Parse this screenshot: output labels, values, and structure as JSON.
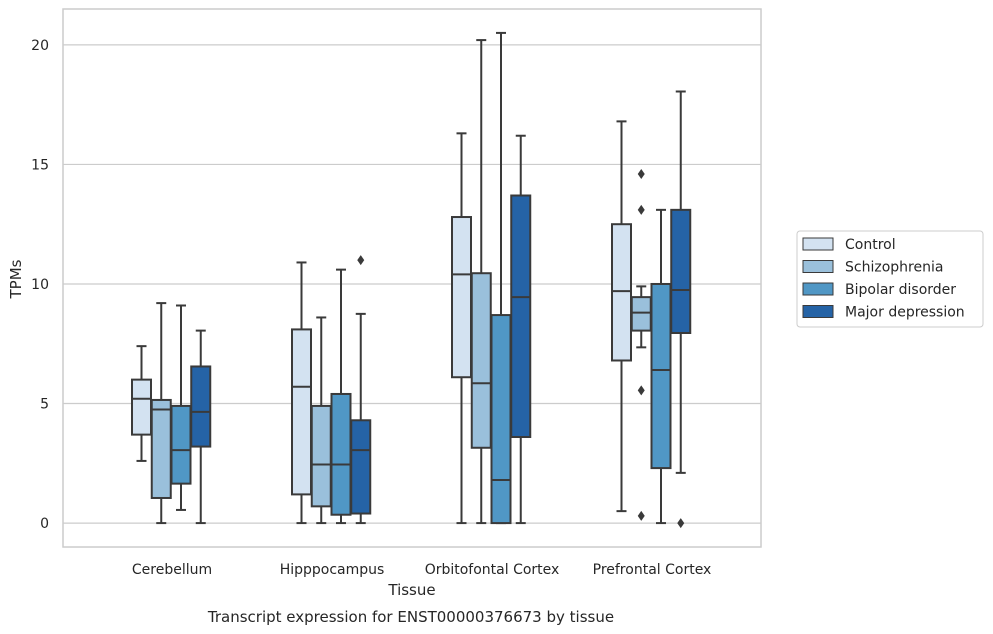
{
  "chart_data": {
    "type": "boxplot",
    "title": "",
    "caption": "Transcript expression for ENST00000376673 by tissue",
    "xlabel": "Tissue",
    "ylabel": "TPMs",
    "ylim": [
      -1,
      21.5
    ],
    "yticks": [
      0,
      5,
      10,
      15,
      20
    ],
    "grid": "horizontal",
    "legend_position": "right",
    "categories": [
      "Cerebellum",
      "Hipppocampus",
      "Orbitofontal Cortex",
      "Prefrontal Cortex"
    ],
    "series": [
      {
        "name": "Control",
        "color": "#d3e2f1",
        "boxes": [
          {
            "whislo": 2.6,
            "q1": 3.7,
            "med": 5.2,
            "q3": 6.0,
            "whishi": 7.4,
            "fliers": []
          },
          {
            "whislo": 0.0,
            "q1": 1.2,
            "med": 5.7,
            "q3": 8.1,
            "whishi": 10.9,
            "fliers": []
          },
          {
            "whislo": 0.0,
            "q1": 6.1,
            "med": 10.4,
            "q3": 12.8,
            "whishi": 16.3,
            "fliers": []
          },
          {
            "whislo": 0.5,
            "q1": 6.8,
            "med": 9.7,
            "q3": 12.5,
            "whishi": 16.8,
            "fliers": []
          }
        ]
      },
      {
        "name": "Schizophrenia",
        "color": "#9ac0db",
        "boxes": [
          {
            "whislo": 0.0,
            "q1": 1.05,
            "med": 4.75,
            "q3": 5.15,
            "whishi": 9.2,
            "fliers": []
          },
          {
            "whislo": 0.0,
            "q1": 0.7,
            "med": 2.45,
            "q3": 4.9,
            "whishi": 8.6,
            "fliers": []
          },
          {
            "whislo": 0.0,
            "q1": 3.15,
            "med": 5.85,
            "q3": 10.45,
            "whishi": 20.2,
            "fliers": []
          },
          {
            "whislo": 7.35,
            "q1": 8.05,
            "med": 8.8,
            "q3": 9.45,
            "whishi": 9.9,
            "fliers": [
              0.3,
              5.55,
              13.1,
              14.6
            ]
          }
        ]
      },
      {
        "name": "Bipolar disorder",
        "color": "#5097c5",
        "boxes": [
          {
            "whislo": 0.55,
            "q1": 1.65,
            "med": 3.05,
            "q3": 4.9,
            "whishi": 9.1,
            "fliers": []
          },
          {
            "whislo": 0.0,
            "q1": 0.35,
            "med": 2.45,
            "q3": 5.4,
            "whishi": 10.6,
            "fliers": []
          },
          {
            "whislo": 0.0,
            "q1": 0.0,
            "med": 1.8,
            "q3": 8.7,
            "whishi": 20.5,
            "fliers": []
          },
          {
            "whislo": 0.0,
            "q1": 2.3,
            "med": 6.4,
            "q3": 10.0,
            "whishi": 13.1,
            "fliers": []
          }
        ]
      },
      {
        "name": "Major depression",
        "color": "#2563a6",
        "boxes": [
          {
            "whislo": 0.0,
            "q1": 3.2,
            "med": 4.65,
            "q3": 6.55,
            "whishi": 8.05,
            "fliers": []
          },
          {
            "whislo": 0.0,
            "q1": 0.4,
            "med": 3.05,
            "q3": 4.3,
            "whishi": 8.75,
            "fliers": [
              11.0
            ]
          },
          {
            "whislo": 0.0,
            "q1": 3.6,
            "med": 9.45,
            "q3": 13.7,
            "whishi": 16.2,
            "fliers": []
          },
          {
            "whislo": 2.1,
            "q1": 7.95,
            "med": 9.75,
            "q3": 13.1,
            "whishi": 18.05,
            "fliers": [
              0.0
            ]
          }
        ]
      }
    ]
  }
}
